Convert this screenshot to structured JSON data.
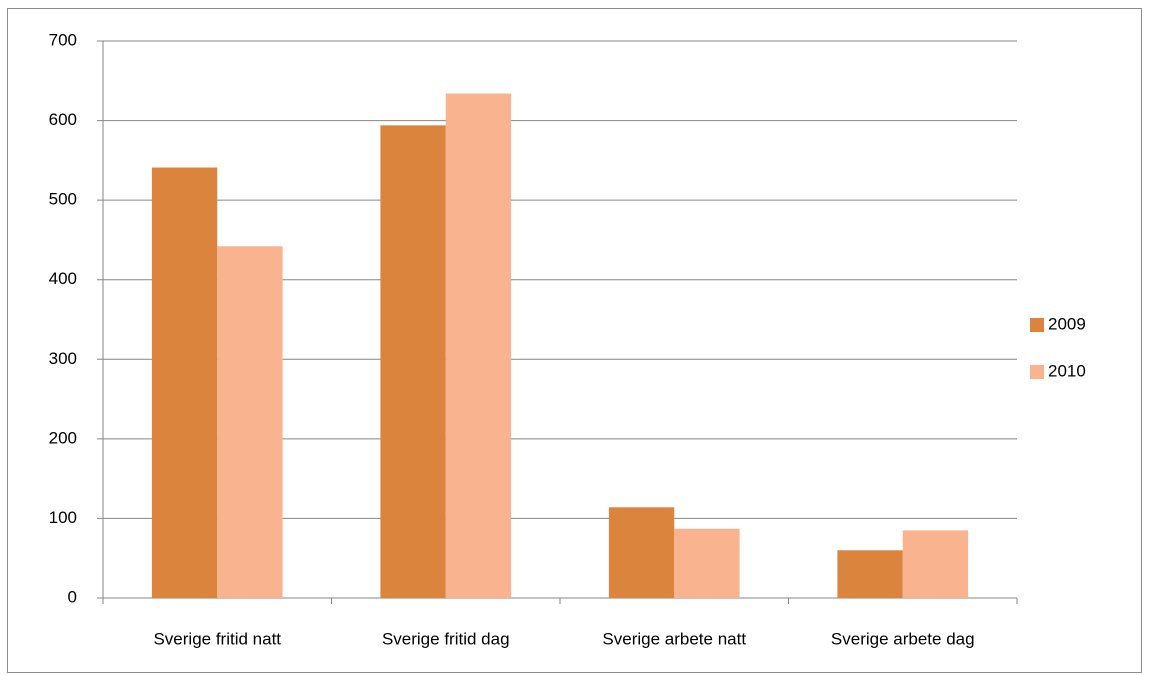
{
  "chart_data": {
    "type": "bar",
    "categories": [
      "Sverige fritid natt",
      "Sverige fritid dag",
      "Sverige arbete natt",
      "Sverige arbete dag"
    ],
    "series": [
      {
        "name": "2009",
        "color": "#db843d",
        "values": [
          541,
          594,
          114,
          60
        ]
      },
      {
        "name": "2010",
        "color": "#f9b38f",
        "values": [
          442,
          634,
          87,
          85
        ]
      }
    ],
    "ylim": [
      0,
      700
    ],
    "yticks": [
      0,
      100,
      200,
      300,
      400,
      500,
      600,
      700
    ],
    "grid": true,
    "legend": "right"
  }
}
